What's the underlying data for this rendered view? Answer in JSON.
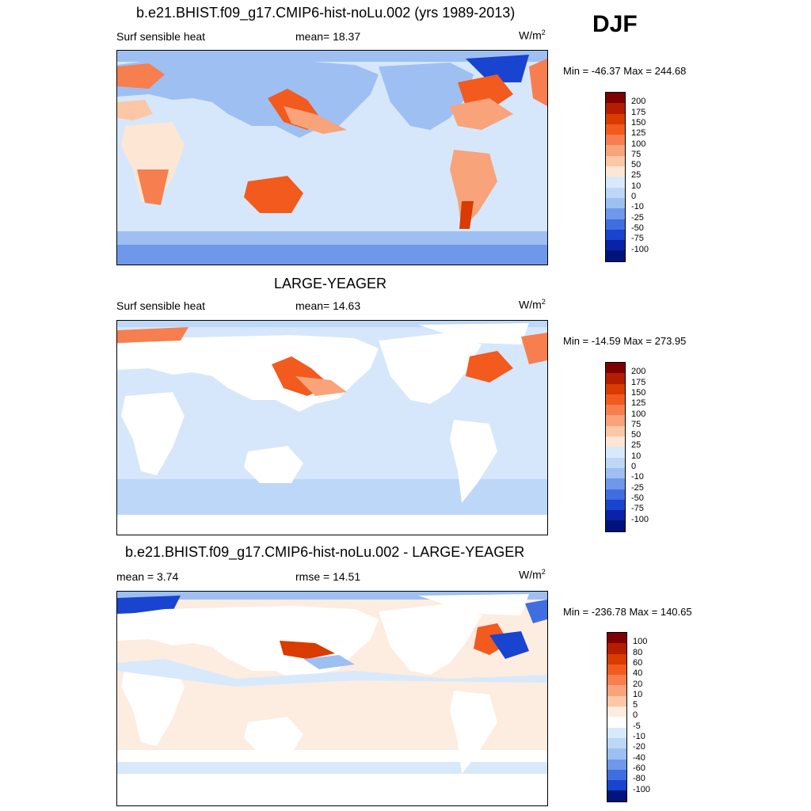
{
  "season": "DJF",
  "units_base": "W/m",
  "units_exp": "2",
  "panels": [
    {
      "title": "b.e21.BHIST.f09_g17.CMIP6-hist-noLu.002 (yrs 1989-2013)",
      "left": "Surf sensible heat",
      "middle": "mean=  18.37",
      "minmax": "Min = -46.37 Max = 244.68"
    },
    {
      "title": "LARGE-YEAGER",
      "left": "Surf sensible heat",
      "middle": "mean=  14.63",
      "minmax": "Min = -14.59 Max = 273.95"
    },
    {
      "title": "b.e21.BHIST.f09_g17.CMIP6-hist-noLu.002 - LARGE-YEAGER",
      "left": "mean =   3.74",
      "middle": "rmse =  14.51",
      "minmax": "Min = -236.78 Max = 140.65"
    }
  ],
  "colorbars": {
    "abs": {
      "labels": [
        "200",
        "175",
        "150",
        "125",
        "100",
        "75",
        "50",
        "25",
        "10",
        "0",
        "-10",
        "-25",
        "-50",
        "-75",
        "-100"
      ],
      "colors": [
        "#7f0000",
        "#b51d00",
        "#d93b00",
        "#f25a1e",
        "#f77e4e",
        "#f8a37a",
        "#fbc7a6",
        "#fde6d4",
        "#d8e9fb",
        "#bcd7f8",
        "#9ebff2",
        "#6f98ea",
        "#3f6ee0",
        "#1844cf",
        "#0a22a8",
        "#00137a"
      ]
    },
    "diff": {
      "labels": [
        "100",
        "80",
        "60",
        "40",
        "20",
        "10",
        "5",
        "0",
        "-5",
        "-10",
        "-20",
        "-40",
        "-60",
        "-80",
        "-100"
      ],
      "colors": [
        "#7f0000",
        "#b51d00",
        "#d93b00",
        "#f25a1e",
        "#f77e4e",
        "#f8a37a",
        "#fbc7a6",
        "#fdece0",
        "#ffffff",
        "#d8e9fb",
        "#bcd7f8",
        "#9ebff2",
        "#6f98ea",
        "#3f6ee0",
        "#1844cf",
        "#00137a"
      ]
    }
  }
}
